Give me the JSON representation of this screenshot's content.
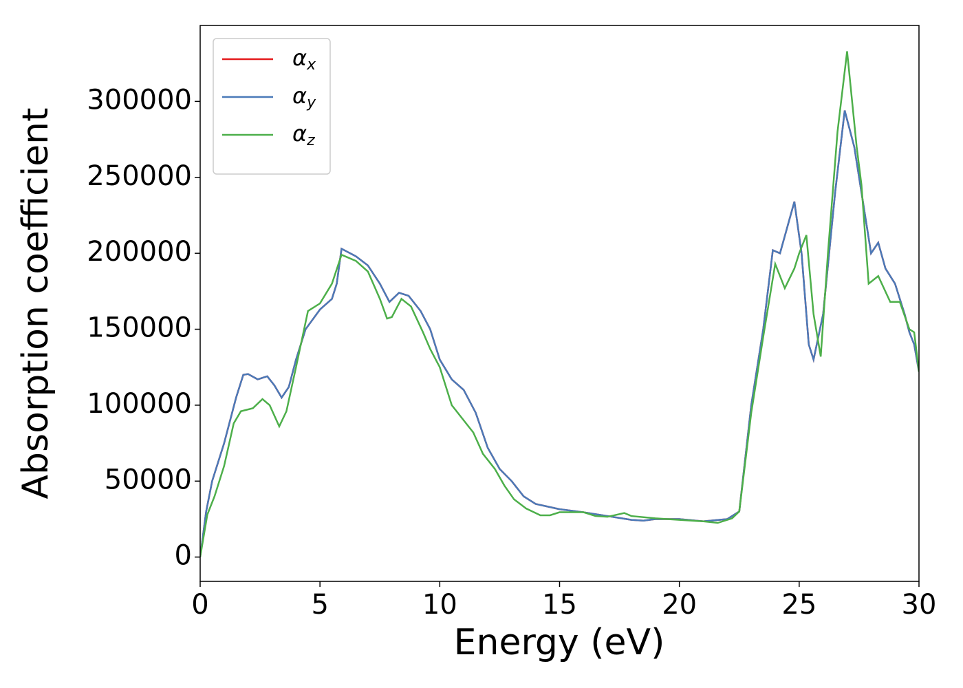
{
  "chart_data": {
    "type": "line",
    "xlabel": "Energy (eV)",
    "ylabel": "Absorption coefficient",
    "xlim": [
      0,
      30
    ],
    "ylim": [
      -16000,
      350000
    ],
    "xticks": [
      0,
      5,
      10,
      15,
      20,
      25,
      30
    ],
    "yticks": [
      0,
      50000,
      100000,
      150000,
      200000,
      250000,
      300000
    ],
    "legend": "upper left",
    "series": [
      {
        "name": "αx",
        "color": "#e41a1c",
        "x": [
          0,
          0.25,
          0.5,
          1,
          1.5,
          1.8,
          2,
          2.4,
          2.8,
          3.1,
          3.4,
          3.7,
          4,
          4.4,
          5,
          5.5,
          5.7,
          5.9,
          6.5,
          7,
          7.5,
          7.9,
          8.3,
          8.7,
          9.2,
          9.6,
          10,
          10.5,
          11,
          11.5,
          12,
          12.5,
          13,
          13.5,
          14,
          15,
          16,
          17,
          18,
          18.5,
          19,
          20,
          21,
          22,
          22.5,
          23,
          23.5,
          23.9,
          24.2,
          24.8,
          25.1,
          25.4,
          25.6,
          26,
          26.5,
          26.9,
          27.3,
          27.6,
          28,
          28.3,
          28.6,
          29,
          29.4,
          29.6,
          29.8,
          30
        ],
        "values": [
          0,
          30000,
          50000,
          75000,
          105000,
          120000,
          120500,
          117000,
          119000,
          113000,
          105000,
          112000,
          130000,
          150000,
          163000,
          170000,
          180000,
          203000,
          198000,
          192000,
          180000,
          168000,
          174000,
          172000,
          162000,
          150000,
          130000,
          117000,
          110000,
          95000,
          72000,
          58000,
          50000,
          40000,
          35000,
          31500,
          29500,
          27000,
          24500,
          24000,
          25000,
          25000,
          23500,
          25000,
          30000,
          100000,
          150000,
          202000,
          200000,
          234000,
          200000,
          140000,
          130000,
          160000,
          240000,
          294000,
          270000,
          240000,
          200000,
          207000,
          190000,
          180000,
          160000,
          148000,
          140000,
          122000
        ]
      },
      {
        "name": "αy",
        "color": "#4a7ab8",
        "x": [
          0,
          0.25,
          0.5,
          1,
          1.5,
          1.8,
          2,
          2.4,
          2.8,
          3.1,
          3.4,
          3.7,
          4,
          4.4,
          5,
          5.5,
          5.7,
          5.9,
          6.5,
          7,
          7.5,
          7.9,
          8.3,
          8.7,
          9.2,
          9.6,
          10,
          10.5,
          11,
          11.5,
          12,
          12.5,
          13,
          13.5,
          14,
          15,
          16,
          17,
          18,
          18.5,
          19,
          20,
          21,
          22,
          22.5,
          23,
          23.5,
          23.9,
          24.2,
          24.8,
          25.1,
          25.4,
          25.6,
          26,
          26.5,
          26.9,
          27.3,
          27.6,
          28,
          28.3,
          28.6,
          29,
          29.4,
          29.6,
          29.8,
          30
        ],
        "values": [
          0,
          30000,
          50000,
          75000,
          105000,
          120000,
          120500,
          117000,
          119000,
          113000,
          105000,
          112000,
          130000,
          150000,
          163000,
          170000,
          180000,
          203000,
          198000,
          192000,
          180000,
          168000,
          174000,
          172000,
          162000,
          150000,
          130000,
          117000,
          110000,
          95000,
          72000,
          58000,
          50000,
          40000,
          35000,
          31500,
          29500,
          27000,
          24500,
          24000,
          25000,
          25000,
          23500,
          25000,
          30000,
          100000,
          150000,
          202000,
          200000,
          234000,
          200000,
          140000,
          130000,
          160000,
          240000,
          294000,
          270000,
          240000,
          200000,
          207000,
          190000,
          180000,
          160000,
          148000,
          140000,
          122000
        ]
      },
      {
        "name": "αz",
        "color": "#4daf4a",
        "x": [
          0,
          0.3,
          0.6,
          1,
          1.4,
          1.7,
          2.2,
          2.6,
          2.9,
          3.3,
          3.6,
          4,
          4.5,
          5,
          5.5,
          5.9,
          6.5,
          7,
          7.5,
          7.8,
          8,
          8.4,
          8.8,
          9.3,
          9.6,
          10,
          10.5,
          11,
          11.4,
          11.8,
          12.3,
          12.7,
          13.1,
          13.6,
          14.2,
          14.6,
          15,
          16,
          16.5,
          17,
          17.7,
          18,
          19,
          20,
          21,
          21.6,
          22.2,
          22.5,
          23,
          23.5,
          24,
          24.4,
          24.8,
          25,
          25.3,
          25.6,
          25.9,
          26.2,
          26.6,
          27,
          27.4,
          27.6,
          27.9,
          28.3,
          28.8,
          29.2,
          29.6,
          29.8,
          30
        ],
        "values": [
          0,
          28000,
          40000,
          60000,
          88000,
          96000,
          98000,
          104000,
          100000,
          86000,
          96000,
          125000,
          162000,
          167000,
          180000,
          199000,
          195000,
          188000,
          170000,
          157000,
          158000,
          170000,
          165000,
          148000,
          137000,
          125000,
          100000,
          90000,
          82000,
          68000,
          58000,
          47000,
          38000,
          32000,
          27500,
          27500,
          29500,
          29500,
          27000,
          26500,
          29000,
          27000,
          25500,
          24500,
          23500,
          22500,
          25500,
          30000,
          95000,
          145000,
          193000,
          177000,
          190000,
          200000,
          212000,
          160000,
          132000,
          200000,
          280000,
          333000,
          270000,
          245000,
          180000,
          185000,
          168000,
          168000,
          150000,
          148000,
          122000
        ]
      }
    ]
  }
}
